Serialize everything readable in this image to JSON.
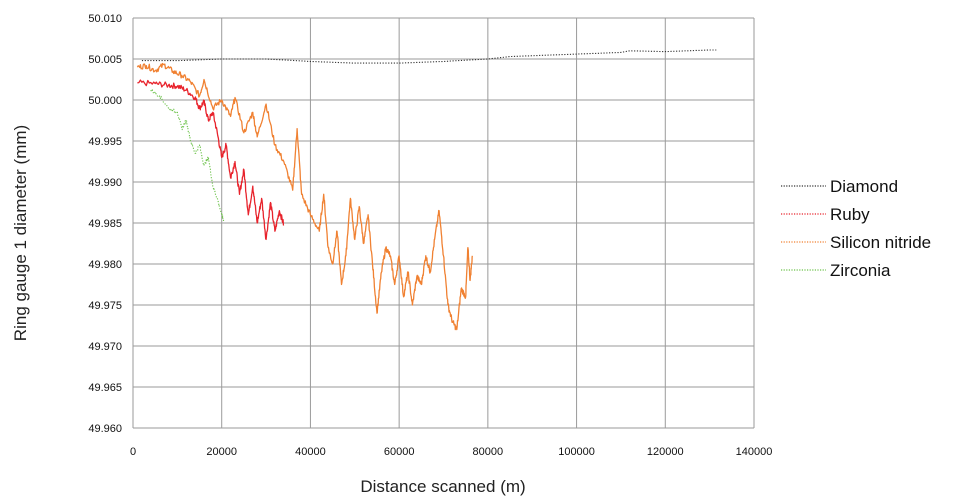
{
  "chart_data": {
    "type": "line",
    "xlabel": "Distance scanned (m)",
    "ylabel": "Ring gauge 1 diameter (mm)",
    "xlim": [
      0,
      140000
    ],
    "ylim": [
      49.96,
      50.01
    ],
    "x_ticks": [
      "0",
      "20000",
      "40000",
      "60000",
      "80000",
      "100000",
      "120000",
      "140000"
    ],
    "y_ticks": [
      "49.960",
      "49.965",
      "49.970",
      "49.975",
      "49.980",
      "49.985",
      "49.990",
      "49.995",
      "50.000",
      "50.005",
      "50.010"
    ],
    "grid": true,
    "legend_position": "right",
    "series": [
      {
        "name": "Diamond",
        "color": "#333333",
        "style": "dotted",
        "points": [
          [
            2000,
            50.0048
          ],
          [
            10000,
            50.0048
          ],
          [
            20000,
            50.005
          ],
          [
            30000,
            50.005
          ],
          [
            40000,
            50.0047
          ],
          [
            50000,
            50.0045
          ],
          [
            60000,
            50.0045
          ],
          [
            70000,
            50.0047
          ],
          [
            80000,
            50.005
          ],
          [
            85000,
            50.0053
          ],
          [
            90000,
            50.0054
          ],
          [
            100000,
            50.0056
          ],
          [
            110000,
            50.0058
          ],
          [
            112000,
            50.006
          ],
          [
            120000,
            50.0059
          ],
          [
            130000,
            50.0061
          ],
          [
            131500,
            50.0061
          ]
        ]
      },
      {
        "name": "Ruby",
        "color": "#e8232c",
        "style": "solid",
        "points": [
          [
            1000,
            50.0021
          ],
          [
            5000,
            50.002
          ],
          [
            8000,
            50.0018
          ],
          [
            10000,
            50.0017
          ],
          [
            12000,
            50.0012
          ],
          [
            14000,
            50.0003
          ],
          [
            15000,
            49.999
          ],
          [
            16000,
            49.9998
          ],
          [
            17000,
            49.9975
          ],
          [
            18000,
            49.9985
          ],
          [
            19000,
            49.996
          ],
          [
            20000,
            49.993
          ],
          [
            21000,
            49.9945
          ],
          [
            22000,
            49.9905
          ],
          [
            23000,
            49.9925
          ],
          [
            24000,
            49.9885
          ],
          [
            25000,
            49.9915
          ],
          [
            26000,
            49.986
          ],
          [
            27000,
            49.9895
          ],
          [
            28000,
            49.985
          ],
          [
            29000,
            49.988
          ],
          [
            30000,
            49.983
          ],
          [
            31000,
            49.9875
          ],
          [
            32000,
            49.984
          ],
          [
            33000,
            49.9865
          ],
          [
            34000,
            49.9848
          ]
        ]
      },
      {
        "name": "Silicon nitride",
        "color": "#f08132",
        "style": "solid",
        "points": [
          [
            1000,
            50.004
          ],
          [
            3000,
            50.0042
          ],
          [
            5000,
            50.0036
          ],
          [
            7000,
            50.0043
          ],
          [
            9000,
            50.0035
          ],
          [
            11000,
            50.003
          ],
          [
            13000,
            50.0022
          ],
          [
            15000,
            50.0005
          ],
          [
            16000,
            50.0025
          ],
          [
            18000,
            49.999
          ],
          [
            20000,
            50.0
          ],
          [
            22000,
            49.998
          ],
          [
            23000,
            50.0003
          ],
          [
            25000,
            49.996
          ],
          [
            27000,
            49.9985
          ],
          [
            28000,
            49.9955
          ],
          [
            30000,
            49.9995
          ],
          [
            32000,
            49.9945
          ],
          [
            34000,
            49.9925
          ],
          [
            36000,
            49.989
          ],
          [
            37000,
            49.9965
          ],
          [
            38000,
            49.9885
          ],
          [
            40000,
            49.986
          ],
          [
            42000,
            49.984
          ],
          [
            43000,
            49.9885
          ],
          [
            44000,
            49.982
          ],
          [
            45000,
            49.98
          ],
          [
            46000,
            49.984
          ],
          [
            47000,
            49.9775
          ],
          [
            48000,
            49.981
          ],
          [
            49000,
            49.988
          ],
          [
            50000,
            49.983
          ],
          [
            51000,
            49.987
          ],
          [
            52000,
            49.9825
          ],
          [
            53000,
            49.986
          ],
          [
            54000,
            49.98
          ],
          [
            55000,
            49.974
          ],
          [
            56000,
            49.979
          ],
          [
            57000,
            49.982
          ],
          [
            58000,
            49.981
          ],
          [
            59000,
            49.9775
          ],
          [
            60000,
            49.981
          ],
          [
            61000,
            49.976
          ],
          [
            62000,
            49.979
          ],
          [
            63000,
            49.975
          ],
          [
            64000,
            49.9785
          ],
          [
            65000,
            49.9775
          ],
          [
            66000,
            49.981
          ],
          [
            67000,
            49.979
          ],
          [
            68000,
            49.983
          ],
          [
            69000,
            49.9865
          ],
          [
            70000,
            49.981
          ],
          [
            71000,
            49.975
          ],
          [
            72000,
            49.973
          ],
          [
            73000,
            49.972
          ],
          [
            74000,
            49.977
          ],
          [
            75000,
            49.976
          ],
          [
            75500,
            49.982
          ],
          [
            76000,
            49.978
          ],
          [
            76500,
            49.981
          ]
        ]
      },
      {
        "name": "Zirconia",
        "color": "#6cc24a",
        "style": "dotted",
        "points": [
          [
            4000,
            50.0012
          ],
          [
            6000,
            50.0005
          ],
          [
            8000,
            49.999
          ],
          [
            10000,
            49.9985
          ],
          [
            11000,
            49.9965
          ],
          [
            12000,
            49.9975
          ],
          [
            13000,
            49.995
          ],
          [
            14000,
            49.9935
          ],
          [
            15000,
            49.9945
          ],
          [
            16000,
            49.992
          ],
          [
            17000,
            49.993
          ],
          [
            18000,
            49.9895
          ],
          [
            19000,
            49.988
          ],
          [
            20000,
            49.986
          ],
          [
            20500,
            49.9852
          ]
        ]
      }
    ]
  }
}
